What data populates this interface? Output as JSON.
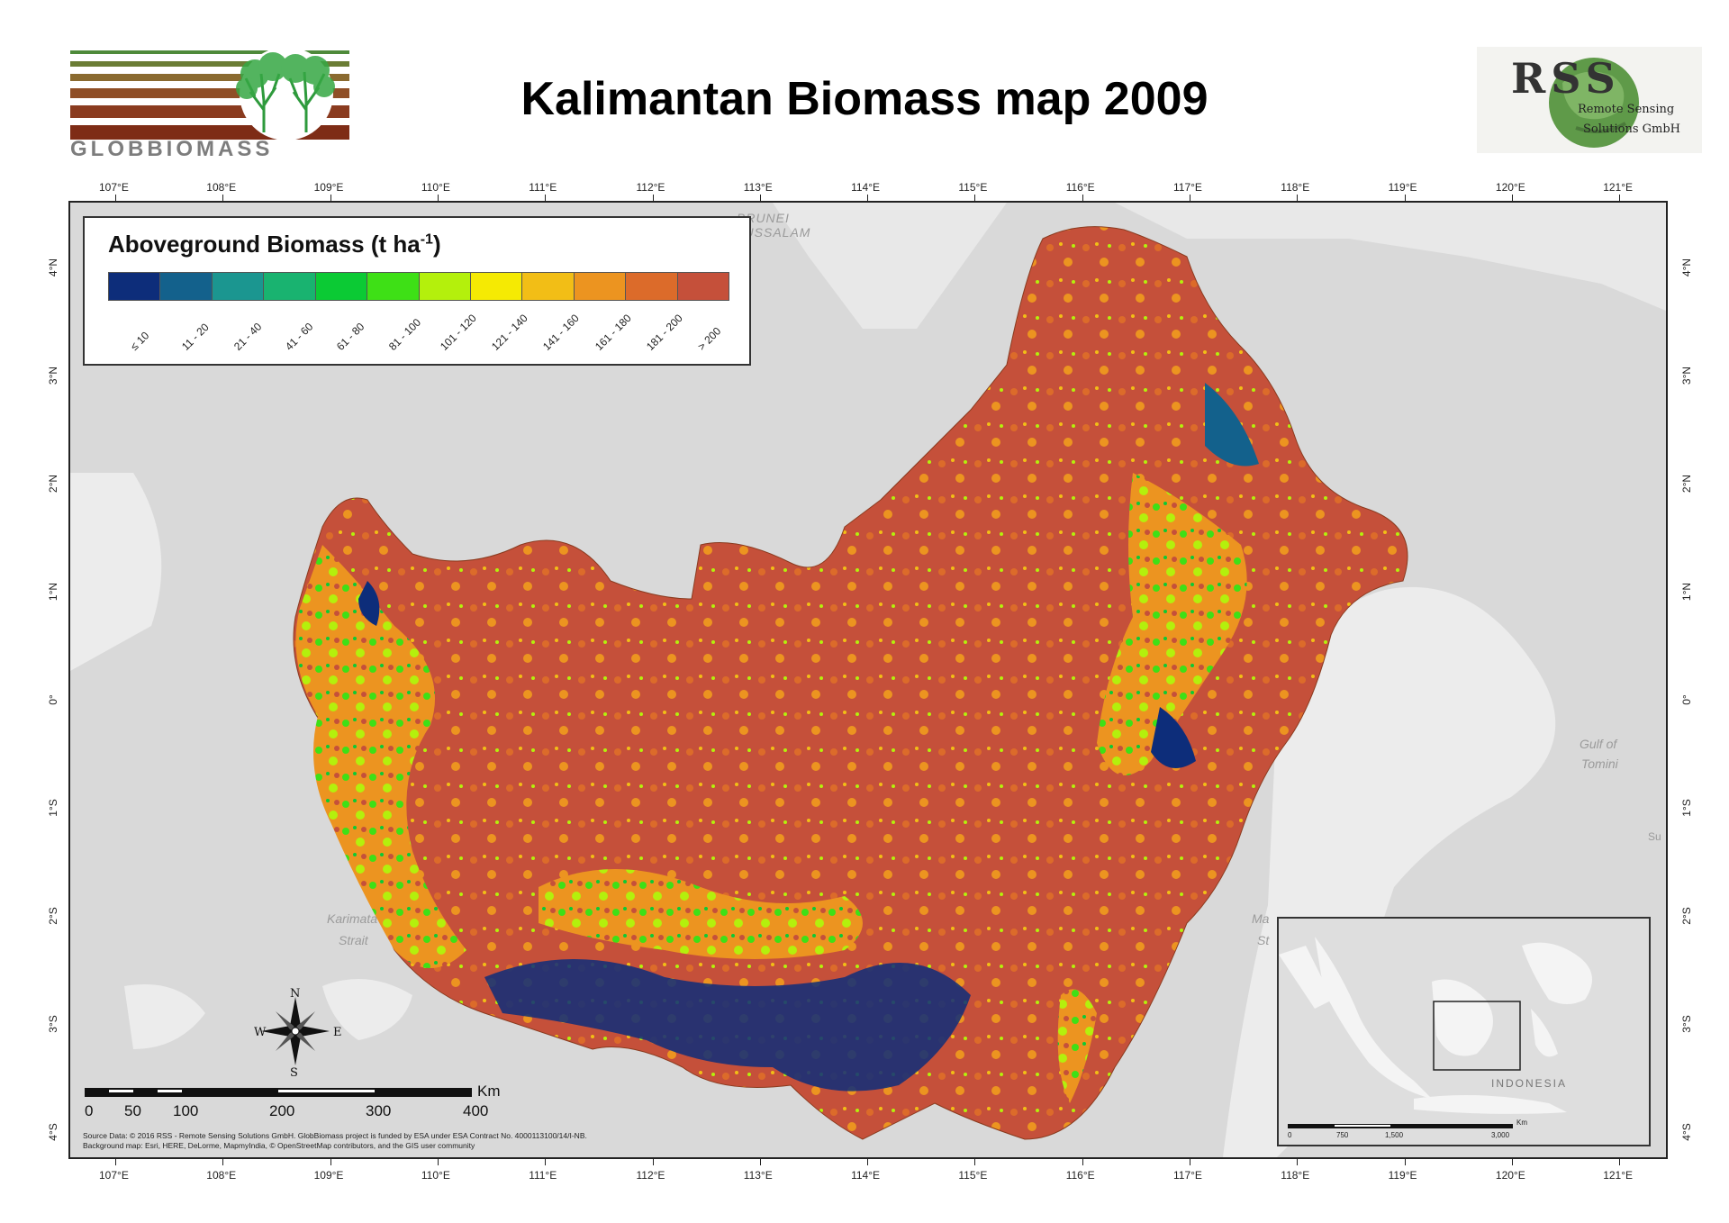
{
  "title": "Kalimantan Biomass map 2009",
  "logos": {
    "left": {
      "name": "globbiomass-logo",
      "text": "GLOBBIOMASS"
    },
    "right": {
      "name": "rss-logo",
      "text_main": "RSS",
      "text_sub1": "Remote Sensing",
      "text_sub2": "Solutions GmbH"
    }
  },
  "longitude_ticks": [
    "107°E",
    "108°E",
    "109°E",
    "110°E",
    "111°E",
    "112°E",
    "113°E",
    "114°E",
    "115°E",
    "116°E",
    "117°E",
    "118°E",
    "119°E",
    "120°E",
    "121°E"
  ],
  "latitude_ticks": [
    "4°N",
    "3°N",
    "2°N",
    "1°N",
    "0°",
    "1°S",
    "2°S",
    "3°S",
    "4°S"
  ],
  "legend": {
    "title": "Aboveground Biomass (t ha",
    "title_sup": "-1",
    "title_end": ")",
    "classes": [
      {
        "label": "≤ 10",
        "color": "#0d2d7a"
      },
      {
        "label": "11 - 20",
        "color": "#13618c"
      },
      {
        "label": "21 - 40",
        "color": "#1b9690"
      },
      {
        "label": "41 - 60",
        "color": "#19b370"
      },
      {
        "label": "61 - 80",
        "color": "#0bca34"
      },
      {
        "label": "81 - 100",
        "color": "#3ee016"
      },
      {
        "label": "101 - 120",
        "color": "#b4f00c"
      },
      {
        "label": "121 - 140",
        "color": "#f5ea03"
      },
      {
        "label": "141 - 160",
        "color": "#f2be16"
      },
      {
        "label": "161 - 180",
        "color": "#ec9420"
      },
      {
        "label": "181 - 200",
        "color": "#dc6b2a"
      },
      {
        "label": "> 200",
        "color": "#c5503a"
      }
    ]
  },
  "places": {
    "brunei1": "BRUNEI",
    "brunei2": "DARUSSALAM",
    "karimata1": "Karimata",
    "karimata2": "Strait",
    "gulf1": "Gulf of",
    "gulf2": "Tomini",
    "makassar1": "Ma",
    "makassar2": "St",
    "sulawesi": "Su"
  },
  "compass": {
    "n": "N",
    "s": "S",
    "e": "E",
    "w": "W"
  },
  "scalebar": {
    "unit": "Km",
    "labels": [
      "0",
      "50",
      "100",
      "200",
      "300",
      "400"
    ]
  },
  "inset": {
    "country": "INDONESIA",
    "unit": "Km",
    "labels": [
      "0",
      "750",
      "1,500",
      "3,000"
    ]
  },
  "footer": {
    "source": "Source Data: © 2016 RSS - Remote Sensing Solutions GmbH. GlobBiomass project is funded by ESA under ESA Contract No. 4000113100/14/I-NB.",
    "background": "Background map: Esri, HERE, DeLorme, MapmyIndia, © OpenStreetMap contributors, and the GIS user community"
  },
  "colors": {
    "sea": "#d9d9d9",
    "land": "#eeeeee",
    "frame": "#222222"
  }
}
